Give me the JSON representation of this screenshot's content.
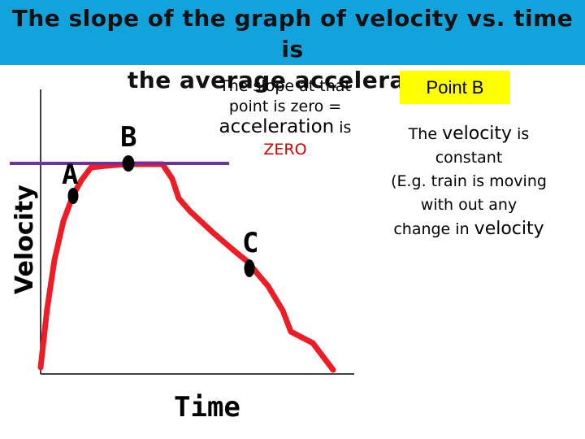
{
  "slide": {
    "title_line1": "The slope of the graph of velocity vs. time is",
    "title_line2": "the average acceleration",
    "title_bar_color": "#12a3dc"
  },
  "callout": {
    "line1": "The slope at that",
    "line2": "point is zero =",
    "line3_big": "acceleration",
    "line3_small": "is",
    "line4": "ZERO",
    "line4_color": "#d40000"
  },
  "point_b_box": {
    "label": "Point B",
    "background": "#ffff00"
  },
  "description": {
    "line1_prefix": "The",
    "line1_big": "velocity",
    "line1_suffix": "is",
    "line2": "constant",
    "line3": "(E.g. train is moving",
    "line4": "with out any",
    "line5_prefix": "change in",
    "line5_big": "velocity"
  },
  "diagram": {
    "y_axis_label": "Velocity",
    "x_axis_label": "Time",
    "point_labels": [
      "A",
      "B",
      "C"
    ],
    "curve_color": "#ee1c24",
    "tangent_line_color": "#7030a0",
    "point_color": "#000000"
  }
}
